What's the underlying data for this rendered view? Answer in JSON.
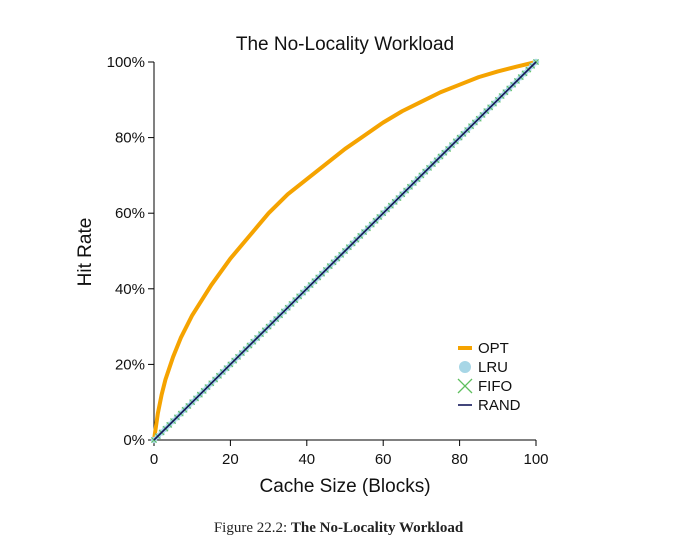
{
  "chart_data": {
    "type": "line",
    "title": "The No-Locality Workload",
    "xlabel": "Cache Size (Blocks)",
    "ylabel": "Hit Rate",
    "xlim": [
      0,
      100
    ],
    "ylim": [
      0,
      100
    ],
    "x_ticks": [
      "0",
      "20",
      "40",
      "60",
      "80",
      "100"
    ],
    "y_ticks": [
      "0%",
      "20%",
      "40%",
      "60%",
      "80%",
      "100%"
    ],
    "grid": false,
    "legend_position": "bottom-right",
    "series": [
      {
        "name": "OPT",
        "color": "#f5a300",
        "x": [
          0,
          1,
          2,
          3,
          5,
          7,
          10,
          15,
          20,
          25,
          30,
          35,
          40,
          45,
          50,
          55,
          60,
          65,
          70,
          75,
          80,
          85,
          90,
          95,
          100
        ],
        "values": [
          0,
          7,
          12,
          16,
          22,
          27,
          33,
          41,
          48,
          54,
          60,
          65,
          69,
          73,
          77,
          80.5,
          84,
          87,
          89.5,
          92,
          94,
          96,
          97.5,
          98.8,
          100
        ]
      },
      {
        "name": "LRU",
        "color": "#a7d6e6",
        "x": [
          0,
          100
        ],
        "values": [
          0,
          100
        ]
      },
      {
        "name": "FIFO",
        "color": "#5fbf5f",
        "x": [
          0,
          100
        ],
        "values": [
          0,
          100
        ]
      },
      {
        "name": "RAND",
        "color": "#14175a",
        "x": [
          0,
          100
        ],
        "values": [
          0,
          100
        ]
      }
    ]
  },
  "caption": {
    "label": "Figure 22.2:",
    "text": "The No-Locality Workload"
  }
}
